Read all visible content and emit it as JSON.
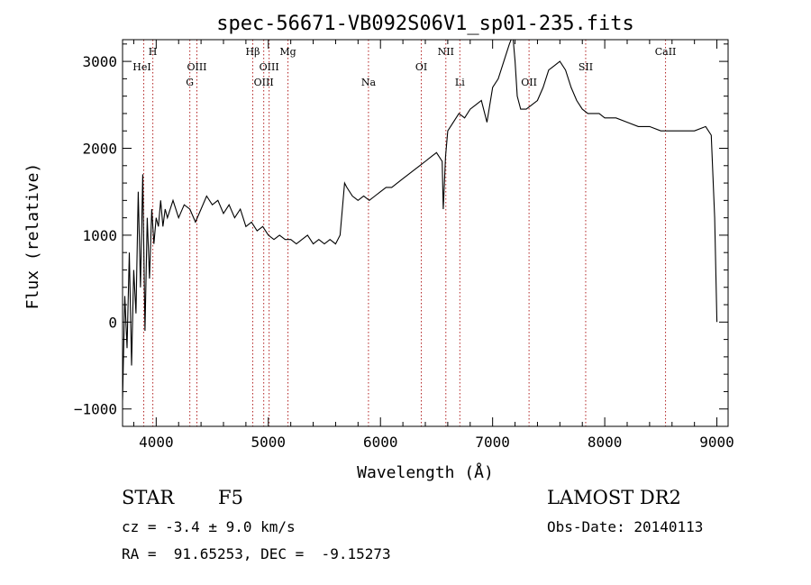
{
  "chart_data": {
    "type": "line",
    "title": "spec-56671-VB092S06V1_sp01-235.fits",
    "xlabel": "Wavelength (Å)",
    "ylabel": "Flux (relative)",
    "xlim": [
      3700,
      9100
    ],
    "ylim": [
      -1200,
      3250
    ],
    "xticks": [
      4000,
      5000,
      6000,
      7000,
      8000,
      9000
    ],
    "yticks": [
      -1000,
      0,
      1000,
      2000,
      3000
    ],
    "grid": false,
    "series": [
      {
        "x": [
          3700,
          3720,
          3740,
          3760,
          3780,
          3800,
          3820,
          3840,
          3860,
          3880,
          3900,
          3920,
          3940,
          3960,
          3980,
          4000,
          4020,
          4040,
          4060,
          4080,
          4100,
          4150,
          4200,
          4250,
          4300,
          4350,
          4400,
          4450,
          4500,
          4550,
          4600,
          4650,
          4700,
          4750,
          4800,
          4850,
          4900,
          4950,
          5000,
          5050,
          5100,
          5150,
          5200,
          5250,
          5300,
          5350,
          5400,
          5450,
          5500,
          5550,
          5600,
          5640,
          5660,
          5680,
          5700,
          5750,
          5800,
          5850,
          5900,
          5950,
          6000,
          6050,
          6100,
          6150,
          6200,
          6250,
          6300,
          6350,
          6400,
          6450,
          6500,
          6550,
          6560,
          6570,
          6580,
          6600,
          6650,
          6700,
          6750,
          6800,
          6850,
          6900,
          6950,
          7000,
          7050,
          7100,
          7150,
          7180,
          7200,
          7220,
          7250,
          7300,
          7350,
          7400,
          7450,
          7500,
          7550,
          7600,
          7650,
          7700,
          7750,
          7800,
          7850,
          7900,
          7950,
          8000,
          8100,
          8200,
          8300,
          8400,
          8500,
          8600,
          8700,
          8800,
          8900,
          8950,
          8980,
          9000
        ],
        "y": [
          -900,
          300,
          -300,
          800,
          -500,
          600,
          100,
          1500,
          400,
          1700,
          -100,
          1200,
          500,
          1300,
          900,
          1200,
          1100,
          1400,
          1100,
          1300,
          1200,
          1400,
          1200,
          1350,
          1300,
          1150,
          1300,
          1450,
          1350,
          1400,
          1250,
          1350,
          1200,
          1300,
          1100,
          1150,
          1050,
          1100,
          1000,
          950,
          1000,
          950,
          950,
          900,
          950,
          1000,
          900,
          950,
          900,
          950,
          900,
          1000,
          1300,
          1600,
          1550,
          1450,
          1400,
          1450,
          1400,
          1450,
          1500,
          1550,
          1550,
          1600,
          1650,
          1700,
          1750,
          1800,
          1850,
          1900,
          1950,
          1850,
          1300,
          1600,
          1900,
          2200,
          2300,
          2400,
          2350,
          2450,
          2500,
          2550,
          2300,
          2700,
          2800,
          3000,
          3200,
          3300,
          3000,
          2600,
          2450,
          2450,
          2500,
          2550,
          2700,
          2900,
          2950,
          3000,
          2900,
          2700,
          2550,
          2450,
          2400,
          2400,
          2400,
          2350,
          2350,
          2300,
          2250,
          2250,
          2200,
          2200,
          2200,
          2200,
          2250,
          2150,
          1200,
          0
        ]
      }
    ],
    "lines": [
      {
        "x": 3889,
        "label": "HeI",
        "row": 2
      },
      {
        "x": 3970,
        "label": "H",
        "row": 1
      },
      {
        "x": 4300,
        "label": "G",
        "row": 3
      },
      {
        "x": 4363,
        "label": "OIII",
        "row": 2
      },
      {
        "x": 4861,
        "label": "Hβ",
        "row": 1
      },
      {
        "x": 4959,
        "label": "OIII",
        "row": 3
      },
      {
        "x": 5007,
        "label": "OIII",
        "row": 2
      },
      {
        "x": 5175,
        "label": "Mg",
        "row": 1
      },
      {
        "x": 5893,
        "label": "Na",
        "row": 3
      },
      {
        "x": 6364,
        "label": "OI",
        "row": 2
      },
      {
        "x": 6583,
        "label": "NII",
        "row": 1
      },
      {
        "x": 6708,
        "label": "Li",
        "row": 3
      },
      {
        "x": 7325,
        "label": "OII",
        "row": 3
      },
      {
        "x": 7830,
        "label": "SII",
        "row": 2
      },
      {
        "x": 8542,
        "label": "CaII",
        "row": 1
      }
    ]
  },
  "info": {
    "class_label": "STAR",
    "subclass": "F5",
    "survey": "LAMOST DR2",
    "redshift": "cz = -3.4 ± 9.0 km/s",
    "obs_date": "Obs-Date: 20140113",
    "coords": "RA =  91.65253, DEC =  -9.15273"
  }
}
